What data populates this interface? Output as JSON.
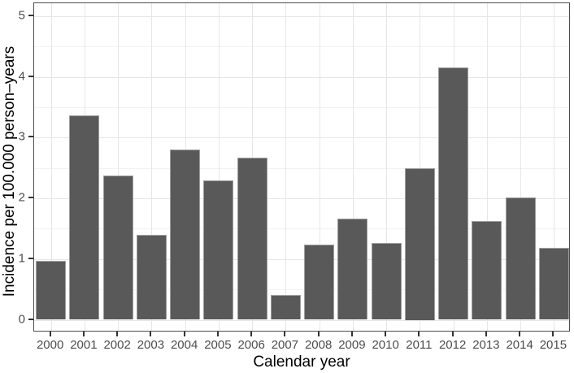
{
  "chart_data": {
    "type": "bar",
    "title": "",
    "xlabel": "Calendar year",
    "ylabel": "Incidence per 100.000 person–years",
    "categories": [
      "2000",
      "2001",
      "2002",
      "2003",
      "2004",
      "2005",
      "2006",
      "2007",
      "2008",
      "2009",
      "2010",
      "2011",
      "2012",
      "2013",
      "2014",
      "2015"
    ],
    "values": [
      0.97,
      3.37,
      2.38,
      1.4,
      2.8,
      2.3,
      2.67,
      0.41,
      1.24,
      1.66,
      1.26,
      2.5,
      4.15,
      1.62,
      2.01,
      1.18
    ],
    "ylim": [
      0,
      5
    ],
    "y_major_ticks": [
      0,
      1,
      2,
      3,
      4,
      5
    ],
    "y_minor_ticks": [
      0.5,
      1.5,
      2.5,
      3.5,
      4.5
    ],
    "grid": "major-and-minor-horizontal, major-vertical-at-category-centers",
    "legend": "none",
    "colors": {
      "bar_fill": "#595959",
      "bar_outline": "#9f9f9f",
      "panel_border": "#4d4d4d",
      "grid_major": "#e6e6e6",
      "grid_minor": "#f2f2f2",
      "tick": "#333333",
      "tick_label": "#4d4d4d",
      "axis_title": "#000000",
      "background": "#ffffff"
    }
  }
}
